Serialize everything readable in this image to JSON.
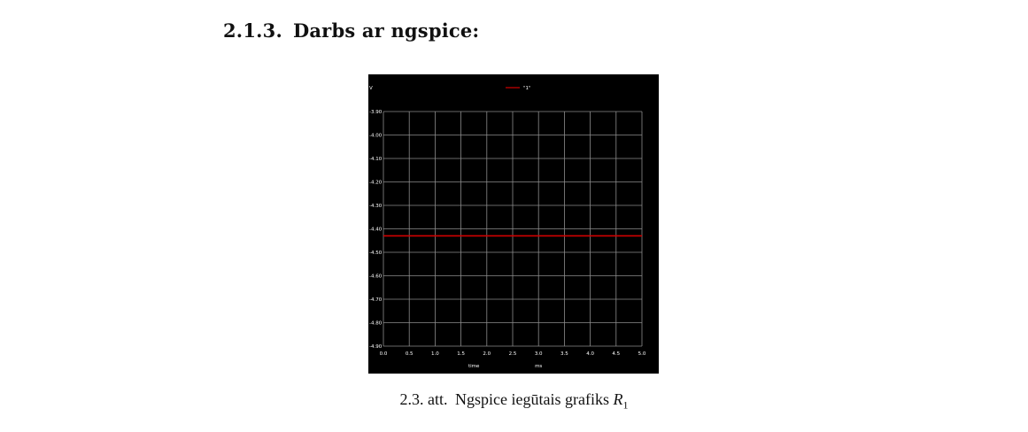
{
  "heading": {
    "number": "2.1.3.",
    "title": "Darbs ar ngspice:"
  },
  "caption": {
    "label": "2.3. att.",
    "text": "Ngspice iegūtais grafiks",
    "symbol": "R",
    "subscript": "1"
  },
  "chart_data": {
    "type": "line",
    "background": "#000000",
    "grid": true,
    "grid_color": "#8c8c8c",
    "text_color": "#ffffff",
    "ylabel": "V",
    "xlabel": "time",
    "x_unit": "ms",
    "xlim": [
      0.0,
      5.0
    ],
    "ylim": [
      -4.9,
      -3.9
    ],
    "x_ticks": [
      "0.0",
      "0.5",
      "1.0",
      "1.5",
      "2.0",
      "2.5",
      "3.0",
      "3.5",
      "4.0",
      "4.5",
      "5.0"
    ],
    "y_ticks": [
      "-3.90",
      "-4.00",
      "-4.10",
      "-4.20",
      "-4.30",
      "-4.40",
      "-4.50",
      "-4.60",
      "-4.70",
      "-4.80",
      "-4.90"
    ],
    "legend_position": "top-center",
    "series": [
      {
        "name": "\"1\"",
        "color": "#d10000",
        "x": [
          0.0,
          5.0
        ],
        "y": [
          -4.43,
          -4.43
        ]
      }
    ]
  }
}
